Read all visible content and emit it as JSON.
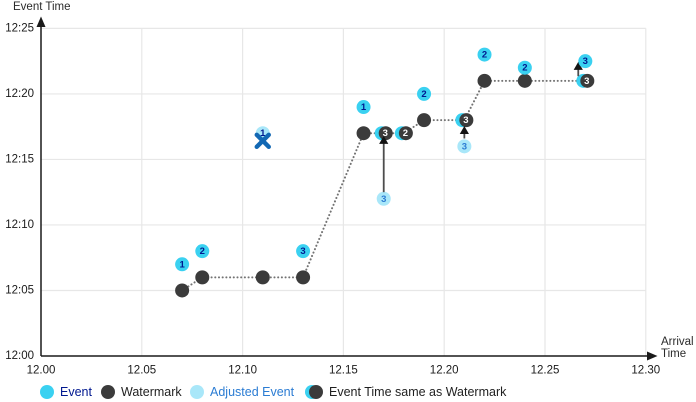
{
  "chart_data": {
    "type": "scatter",
    "title": "",
    "xlabel": "Arrival Time",
    "ylabel": "Event Time",
    "x_ticks": {
      "labels": [
        "12.00",
        "12.05",
        "12.10",
        "12.15",
        "12.20",
        "12.25",
        "12.30"
      ],
      "values": [
        12.0,
        12.05,
        12.1,
        12.15,
        12.2,
        12.25,
        12.3
      ]
    },
    "y_ticks": {
      "labels": [
        "12:00",
        "12:05",
        "12:10",
        "12:15",
        "12:20",
        "12:25"
      ],
      "minutes": [
        0,
        5,
        10,
        15,
        20,
        25
      ]
    },
    "x_range": [
      12.0,
      12.3
    ],
    "y_range_minutes": [
      0,
      25
    ],
    "grid": true,
    "legend_position": "bottom",
    "events": [
      {
        "label": "1",
        "arrival": 12.07,
        "event_time": "12:07",
        "y_min": 7
      },
      {
        "label": "2",
        "arrival": 12.08,
        "event_time": "12:08",
        "y_min": 8
      },
      {
        "label": "3",
        "arrival": 12.13,
        "event_time": "12:08",
        "y_min": 8
      },
      {
        "label": "1",
        "arrival": 12.16,
        "event_time": "12:19",
        "y_min": 19
      },
      {
        "label": "2",
        "arrival": 12.19,
        "event_time": "12:20",
        "y_min": 20
      },
      {
        "label": "2",
        "arrival": 12.22,
        "event_time": "12:23",
        "y_min": 23
      },
      {
        "label": "2",
        "arrival": 12.24,
        "event_time": "12:22",
        "y_min": 22
      },
      {
        "label": "3",
        "arrival": 12.27,
        "event_time": "12:22",
        "y_min": 22.5
      }
    ],
    "watermarks": [
      {
        "arrival": 12.07,
        "time": "12:05",
        "y_min": 5
      },
      {
        "arrival": 12.08,
        "time": "12:06",
        "y_min": 6
      },
      {
        "arrival": 12.11,
        "time": "12:06",
        "y_min": 6
      },
      {
        "arrival": 12.13,
        "time": "12:06",
        "y_min": 6
      },
      {
        "arrival": 12.16,
        "time": "12:17",
        "y_min": 17
      },
      {
        "arrival": 12.19,
        "time": "12:18",
        "y_min": 18
      },
      {
        "arrival": 12.22,
        "time": "12:21",
        "y_min": 21
      },
      {
        "arrival": 12.24,
        "time": "12:21",
        "y_min": 21
      }
    ],
    "same_as_watermark": [
      {
        "label": "3",
        "arrival": 12.17,
        "time": "12:17",
        "y_min": 17
      },
      {
        "label": "2",
        "arrival": 12.18,
        "time": "12:17",
        "y_min": 17
      },
      {
        "label": "3",
        "arrival": 12.21,
        "time": "12:18",
        "y_min": 18
      },
      {
        "label": "3",
        "arrival": 12.27,
        "time": "12:21",
        "y_min": 21
      }
    ],
    "adjusted_events": [
      {
        "label": "3",
        "arrival": 12.17,
        "original_time": "12:12",
        "y_min": 12
      },
      {
        "label": "3",
        "arrival": 12.21,
        "original_time": "12:16",
        "y_min": 16
      }
    ],
    "dropped_event": {
      "label": "1",
      "arrival": 12.11,
      "event_time": "12:17",
      "y_min": 17,
      "marker": "x"
    },
    "adjustment_arrows": [
      {
        "x": 12.17,
        "tail_min": 12.5,
        "tip_min": 16.8
      },
      {
        "x": 12.21,
        "tail_min": 16.6,
        "tip_min": 17.55
      },
      {
        "x": 12.2665,
        "tail_min": 21.35,
        "tip_min": 22.45
      }
    ],
    "watermark_line": [
      [
        12.07,
        5
      ],
      [
        12.08,
        6
      ],
      [
        12.13,
        6
      ],
      [
        12.16,
        17
      ],
      [
        12.18,
        17
      ],
      [
        12.19,
        18
      ],
      [
        12.21,
        18
      ],
      [
        12.22,
        21
      ],
      [
        12.27,
        21
      ]
    ]
  },
  "legend": {
    "items": [
      {
        "label": "Event",
        "marker": "event"
      },
      {
        "label": "Watermark",
        "marker": "watermark"
      },
      {
        "label": "Adjusted Event",
        "marker": "adjusted-event"
      },
      {
        "label": "Event Time same as Watermark",
        "marker": "event-time-same-as-watermark"
      }
    ]
  },
  "colors": {
    "event": "#3ad1f1",
    "watermark": "#3b3b3b",
    "adjusted_event": "#a9e7f9",
    "event_number": "#00188f",
    "adjusted_number": "#2b7cd3",
    "half_marker_number": "#ffffff",
    "x_mark": "#1268b4",
    "dotted_line": "#737373",
    "arrow_line": "#4d4d4d",
    "arrowhead": "#141414",
    "grid": "#e7e7e7",
    "axis": "#1a1a1a"
  }
}
